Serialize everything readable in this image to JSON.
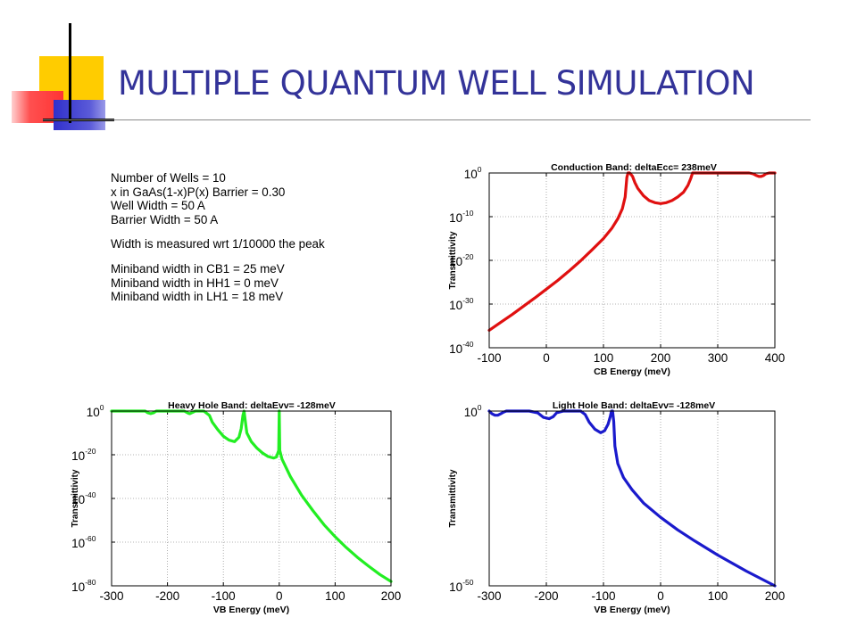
{
  "slide": {
    "title": "MULTIPLE QUANTUM WELL SIMULATION",
    "accent_color": "#333399",
    "decoration_colors": {
      "yellow": "#ffcc00",
      "red": "#ff3333",
      "blue": "#3333cc",
      "black": "#000000"
    }
  },
  "parameters": {
    "group1": [
      "Number of Wells = 10",
      "x in GaAs(1-x)P(x) Barrier = 0.30",
      "Well Width = 50 A",
      "Barrier Width = 50 A"
    ],
    "group2": [
      "Width is measured wrt 1/10000 the peak"
    ],
    "group3": [
      "Miniband width in CB1 = 25 meV",
      "Miniband width in HH1 = 0 meV",
      "Miniband width in LH1 = 18 meV"
    ]
  },
  "chart_data": [
    {
      "type": "line",
      "title": "Conduction Band: deltaEcc= 238meV",
      "xlabel": "CB Energy (meV)",
      "ylabel": "Transmittivity",
      "xlim": [
        -100,
        400
      ],
      "ylim_log10": [
        -40,
        0
      ],
      "y_scale": "log",
      "grid": true,
      "x_ticks": [
        "-100",
        "0",
        "100",
        "200",
        "300",
        "400"
      ],
      "y_ticks": [
        {
          "base": "10",
          "exp": "0"
        },
        {
          "base": "10",
          "exp": "-10"
        },
        {
          "base": "10",
          "exp": "-20"
        },
        {
          "base": "10",
          "exp": "-30"
        },
        {
          "base": "10",
          "exp": "-40"
        }
      ],
      "color": "#e01010",
      "series": [
        {
          "x": [
            -100,
            -80,
            -60,
            -40,
            -20,
            0,
            20,
            40,
            60,
            80,
            100,
            115,
            125,
            133,
            138,
            141,
            143,
            146,
            148,
            151,
            155,
            160,
            170,
            180,
            190,
            200,
            210,
            220,
            230,
            240,
            248,
            253,
            256,
            258,
            260,
            264,
            270,
            290,
            310,
            330,
            345,
            355,
            362,
            368,
            372,
            376,
            380,
            384,
            390,
            400
          ],
          "log10_y": [
            -36,
            -34.2,
            -32.4,
            -30.5,
            -28.6,
            -26.6,
            -24.6,
            -22.4,
            -20.1,
            -17.6,
            -15,
            -12.6,
            -10.5,
            -8.2,
            -5.5,
            -1,
            0,
            0,
            -0.3,
            -0.8,
            -2.2,
            -3.5,
            -5.2,
            -6.3,
            -6.8,
            -7,
            -6.8,
            -6.3,
            -5.5,
            -4.4,
            -2.8,
            -1.2,
            0,
            0,
            0,
            0,
            0,
            0,
            0,
            0,
            0,
            0,
            -0.2,
            -0.6,
            -0.8,
            -0.8,
            -0.6,
            -0.2,
            0,
            0
          ]
        }
      ]
    },
    {
      "type": "line",
      "title": "Heavy Hole Band: deltaEvv= -128meV",
      "xlabel": "VB Energy (meV)",
      "ylabel": "Transmittivity",
      "xlim": [
        -300,
        200
      ],
      "ylim_log10": [
        -80,
        0
      ],
      "y_scale": "log",
      "grid": true,
      "x_ticks": [
        "-300",
        "-200",
        "-100",
        "0",
        "100",
        "200"
      ],
      "y_ticks": [
        {
          "base": "10",
          "exp": "0"
        },
        {
          "base": "10",
          "exp": "-20"
        },
        {
          "base": "10",
          "exp": "-40"
        },
        {
          "base": "10",
          "exp": "-60"
        },
        {
          "base": "10",
          "exp": "-80"
        }
      ],
      "color": "#22ee22",
      "series": [
        {
          "x": [
            -300,
            -250,
            -240,
            -235,
            -230,
            -225,
            -220,
            -210,
            -170,
            -163,
            -160,
            -157,
            -150,
            -135,
            -125,
            -120,
            -110,
            -100,
            -90,
            -80,
            -72,
            -68,
            -65,
            -63,
            -61,
            -58,
            -50,
            -40,
            -30,
            -20,
            -10,
            -5,
            -1,
            0,
            1,
            5,
            20,
            40,
            60,
            80,
            100,
            120,
            140,
            160,
            180,
            200
          ],
          "log10_y": [
            0,
            0,
            0,
            -0.8,
            -1.2,
            -0.8,
            0,
            0,
            0,
            -1,
            -1.2,
            -0.8,
            0,
            0,
            -2,
            -5,
            -8.5,
            -11.5,
            -13.3,
            -14,
            -12,
            -8,
            -2,
            0,
            -4,
            -10,
            -14,
            -17,
            -19.2,
            -20.8,
            -21.5,
            -21,
            -18,
            0,
            -18,
            -22,
            -30,
            -38.5,
            -45.5,
            -52,
            -57.5,
            -62.5,
            -67,
            -71,
            -74.8,
            -78
          ]
        }
      ]
    },
    {
      "type": "line",
      "title": "Light Hole Band: deltaEvv= -128meV",
      "xlabel": "VB Energy (meV)",
      "ylabel": "Transmittivity",
      "xlim": [
        -300,
        200
      ],
      "ylim_log10": [
        -50,
        0
      ],
      "y_scale": "log",
      "grid": true,
      "x_ticks": [
        "-300",
        "-200",
        "-100",
        "0",
        "100",
        "200"
      ],
      "y_ticks": [
        {
          "base": "10",
          "exp": "0"
        },
        {
          "base": "10",
          "exp": "-50"
        }
      ],
      "color": "#1a1acc",
      "series": [
        {
          "x": [
            -300,
            -295,
            -290,
            -285,
            -280,
            -275,
            -270,
            -230,
            -215,
            -205,
            -195,
            -188,
            -182,
            -170,
            -140,
            -132,
            -125,
            -115,
            -105,
            -98,
            -92,
            -88,
            -86,
            -84,
            -82,
            -80,
            -75,
            -65,
            -50,
            -30,
            0,
            30,
            60,
            100,
            150,
            200
          ],
          "log10_y": [
            0,
            -0.8,
            -1.2,
            -1.2,
            -0.8,
            -0.3,
            0,
            0,
            -0.5,
            -1.8,
            -2.2,
            -1.6,
            -0.5,
            0,
            0,
            -1,
            -3.2,
            -5.2,
            -6.2,
            -5.6,
            -3.8,
            -1.5,
            0,
            0,
            -3,
            -10,
            -15,
            -19,
            -22.5,
            -26.3,
            -30.4,
            -34,
            -37.2,
            -41.2,
            -45.8,
            -50
          ]
        }
      ]
    }
  ]
}
